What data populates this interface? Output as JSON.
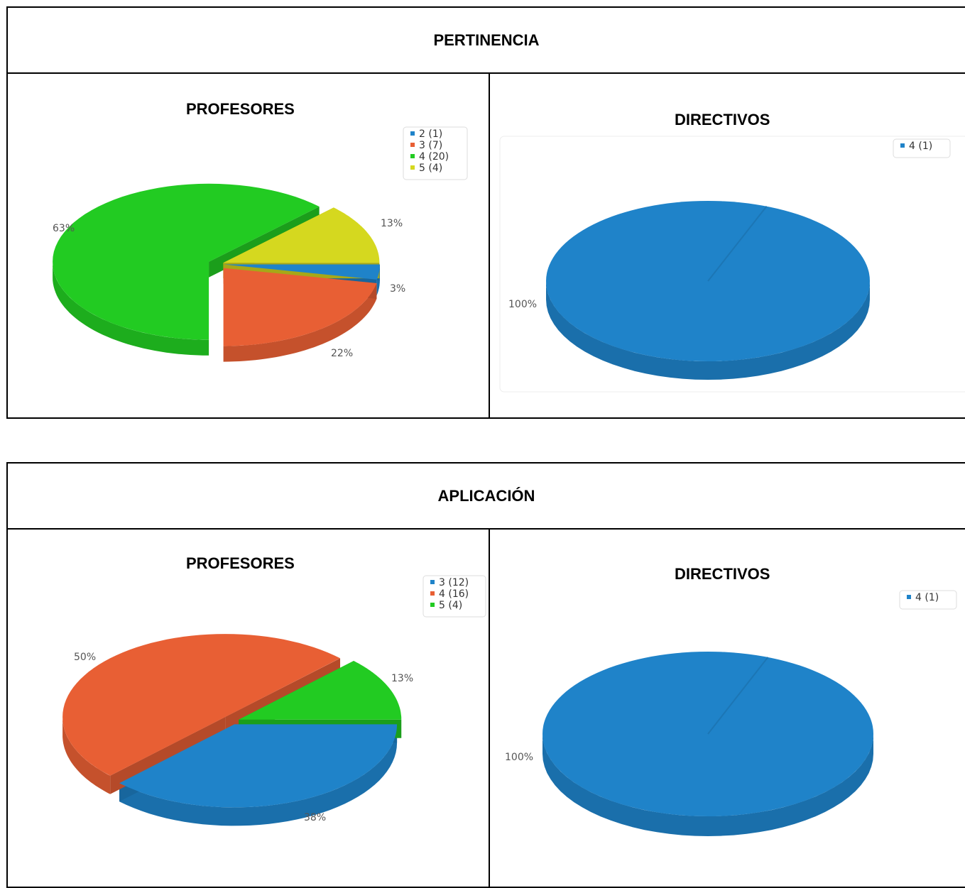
{
  "sections": [
    {
      "title": "PERTINENCIA",
      "left_title": "PROFESORES",
      "right_title": "DIRECTIVOS"
    },
    {
      "title": "APLICACIÓN",
      "left_title": "PROFESORES",
      "right_title": "DIRECTIVOS"
    }
  ],
  "colors": {
    "blue": "#1f83c9",
    "orange": "#e85f34",
    "green": "#22cb22",
    "yellow": "#d5d81f"
  },
  "chart_data": [
    {
      "type": "pie",
      "section": "PERTINENCIA",
      "title": "PROFESORES",
      "slices": [
        {
          "legend": "2 (1)",
          "value": 1,
          "percent_label": "3%",
          "color": "#1f83c9"
        },
        {
          "legend": "3 (7)",
          "value": 7,
          "percent_label": "22%",
          "color": "#e85f34"
        },
        {
          "legend": "4 (20)",
          "value": 20,
          "percent_label": "63%",
          "color": "#22cb22"
        },
        {
          "legend": "5 (4)",
          "value": 4,
          "percent_label": "13%",
          "color": "#d5d81f"
        }
      ],
      "legend_position": "top-right"
    },
    {
      "type": "pie",
      "section": "PERTINENCIA",
      "title": "DIRECTIVOS",
      "slices": [
        {
          "legend": "4 (1)",
          "value": 1,
          "percent_label": "100%",
          "color": "#1f83c9"
        }
      ],
      "legend_position": "top-right"
    },
    {
      "type": "pie",
      "section": "APLICACIÓN",
      "title": "PROFESORES",
      "slices": [
        {
          "legend": "3 (12)",
          "value": 12,
          "percent_label": "38%",
          "color": "#1f83c9"
        },
        {
          "legend": "4 (16)",
          "value": 16,
          "percent_label": "50%",
          "color": "#e85f34"
        },
        {
          "legend": "5 (4)",
          "value": 4,
          "percent_label": "13%",
          "color": "#22cb22"
        }
      ],
      "legend_position": "top-right"
    },
    {
      "type": "pie",
      "section": "APLICACIÓN",
      "title": "DIRECTIVOS",
      "slices": [
        {
          "legend": "4 (1)",
          "value": 1,
          "percent_label": "100%",
          "color": "#1f83c9"
        }
      ],
      "legend_position": "top-right"
    }
  ]
}
